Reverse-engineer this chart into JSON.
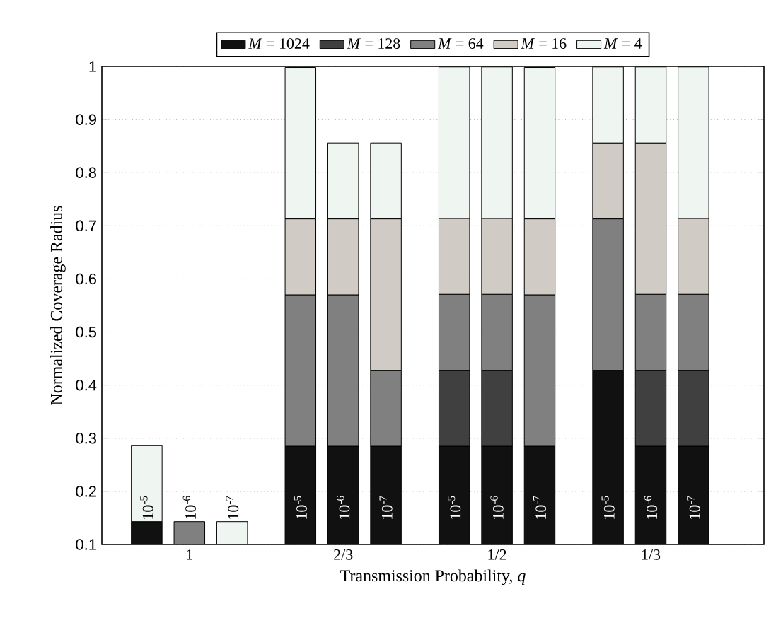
{
  "chart_data": {
    "type": "bar",
    "stacked": true,
    "xlabel": "Transmission Probability, *q*",
    "ylabel": "Normalized Coverage Radius",
    "categories": [
      "10$^{-5}$",
      "10$^{-6}$",
      "10$^{-7}$",
      "10$^{-5}$",
      "10$^{-6}$",
      "10$^{-7}$",
      "10$^{-5}$",
      "10$^{-6}$",
      "10$^{-7}$",
      "10$^{-5}$",
      "10$^{-6}$",
      "10$^{-7}$"
    ],
    "annotations": [
      "1",
      "2/3",
      "1/2",
      "1/3"
    ],
    "series": [
      {
        "name": "*M* = 1024",
        "color": "#111111",
        "values": [
          0.143,
          null,
          null,
          0.285,
          0.285,
          0.285,
          0.285,
          0.285,
          0.285,
          0.428,
          0.285,
          0.285
        ]
      },
      {
        "name": "*M* = 128",
        "color": "#404040",
        "values": [
          null,
          null,
          null,
          null,
          null,
          null,
          0.143,
          0.143,
          null,
          null,
          0.143,
          0.143
        ]
      },
      {
        "name": "*M* = 64",
        "color": "#808080",
        "values": [
          null,
          0.143,
          null,
          0.285,
          0.285,
          0.143,
          0.143,
          0.143,
          0.285,
          0.285,
          0.143,
          0.143
        ]
      },
      {
        "name": "*M* = 16",
        "color": "#d1cbc5",
        "values": [
          null,
          null,
          null,
          0.143,
          0.143,
          0.285,
          0.143,
          0.143,
          0.143,
          0.143,
          0.285,
          0.143
        ]
      },
      {
        "name": "*M* = 4",
        "color": "#eff5f0",
        "values": [
          0.143,
          null,
          0.143,
          0.285,
          0.143,
          0.143,
          0.285,
          0.285,
          0.285,
          0.143,
          0.143,
          0.285
        ]
      }
    ],
    "ylim": [
      0.1,
      1
    ],
    "yticks": [
      0.1,
      0.2,
      0.3,
      0.4,
      0.5,
      0.6,
      0.7,
      0.8,
      0.9,
      1
    ],
    "grid": "y",
    "legend": "top"
  }
}
